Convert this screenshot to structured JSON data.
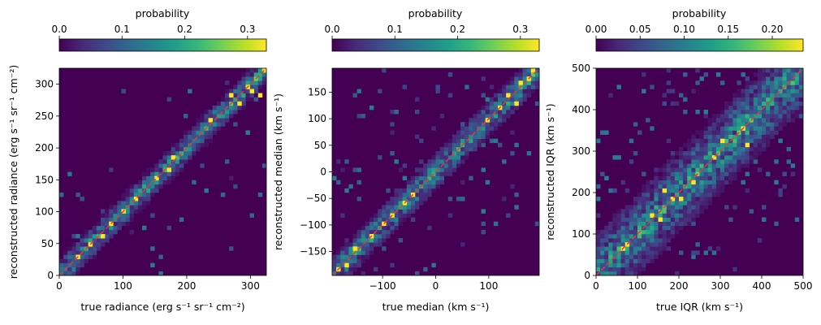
{
  "colors": {
    "viridis": [
      "#440154",
      "#482878",
      "#3e4989",
      "#31688e",
      "#26828e",
      "#1f9e89",
      "#35b779",
      "#6ece58",
      "#b5de2b",
      "#fde725"
    ],
    "diagonal": "#e8383d",
    "axes": "#000000"
  },
  "chart_data": [
    {
      "type": "heatmap",
      "colorbar": {
        "label": "probability",
        "range": [
          0,
          0.33
        ],
        "ticks": [
          0.0,
          0.1,
          0.2,
          0.3
        ],
        "tick_labels": [
          "0.0",
          "0.1",
          "0.2",
          "0.3"
        ]
      },
      "xlabel": "true radiance (erg s⁻¹ sr⁻¹ cm⁻²)",
      "ylabel": "reconstructed radiance (erg s⁻¹ sr⁻¹ cm⁻²)",
      "xlim": [
        0,
        325
      ],
      "ylim": [
        0,
        325
      ],
      "xticks": [
        0,
        100,
        200,
        300
      ],
      "xtick_labels": [
        "0",
        "100",
        "200",
        "300"
      ],
      "yticks": [
        0,
        50,
        100,
        150,
        200,
        250,
        300
      ],
      "ytick_labels": [
        "0",
        "50",
        "100",
        "150",
        "200",
        "250",
        "300"
      ],
      "bins": 50,
      "diagonal": true,
      "band_width": 0.085,
      "tail": 0.28,
      "hot_cells": [
        [
          30,
          30
        ],
        [
          50,
          48
        ],
        [
          65,
          62
        ],
        [
          80,
          82
        ],
        [
          100,
          98
        ],
        [
          120,
          118
        ],
        [
          150,
          150
        ],
        [
          170,
          165
        ],
        [
          180,
          185
        ],
        [
          240,
          245
        ],
        [
          270,
          282
        ],
        [
          280,
          270
        ],
        [
          295,
          295
        ],
        [
          305,
          290
        ],
        [
          320,
          320
        ],
        [
          315,
          280
        ]
      ]
    },
    {
      "type": "heatmap",
      "colorbar": {
        "label": "probability",
        "range": [
          0,
          0.33
        ],
        "ticks": [
          0.0,
          0.1,
          0.2,
          0.3
        ],
        "tick_labels": [
          "0.0",
          "0.1",
          "0.2",
          "0.3"
        ]
      },
      "xlabel": "true median (km s⁻¹)",
      "ylabel": "reconstructed median (km s⁻¹)",
      "xlim": [
        -195,
        195
      ],
      "ylim": [
        -195,
        195
      ],
      "xticks": [
        -100,
        0,
        100
      ],
      "xtick_labels": [
        "−100",
        "0",
        "100"
      ],
      "yticks": [
        -150,
        -100,
        -50,
        0,
        50,
        100,
        150
      ],
      "ytick_labels": [
        "−150",
        "−100",
        "−50",
        "0",
        "50",
        "100",
        "150"
      ],
      "bins": 50,
      "diagonal": true,
      "band_width": 0.1,
      "tail": 0.55,
      "hot_cells": [
        [
          -185,
          -185
        ],
        [
          -170,
          -172
        ],
        [
          -150,
          -148
        ],
        [
          -120,
          -118
        ],
        [
          -100,
          -100
        ],
        [
          -80,
          -80
        ],
        [
          -60,
          -62
        ],
        [
          -40,
          -45
        ],
        [
          100,
          100
        ],
        [
          120,
          118
        ],
        [
          140,
          145
        ],
        [
          160,
          165
        ],
        [
          175,
          178
        ],
        [
          185,
          188
        ],
        [
          150,
          130
        ]
      ]
    },
    {
      "type": "heatmap",
      "colorbar": {
        "label": "probability",
        "range": [
          0,
          0.235
        ],
        "ticks": [
          0.0,
          0.05,
          0.1,
          0.15,
          0.2
        ],
        "tick_labels": [
          "0.00",
          "0.05",
          "0.10",
          "0.15",
          "0.20"
        ]
      },
      "xlabel": "true IQR (km s⁻¹)",
      "ylabel": "reconstructed IQR (km s⁻¹)",
      "xlim": [
        0,
        500
      ],
      "ylim": [
        0,
        500
      ],
      "xticks": [
        0,
        100,
        200,
        300,
        400,
        500
      ],
      "xtick_labels": [
        "0",
        "100",
        "200",
        "300",
        "400",
        "500"
      ],
      "yticks": [
        0,
        100,
        200,
        300,
        400,
        500
      ],
      "ytick_labels": [
        "0",
        "100",
        "200",
        "300",
        "400",
        "500"
      ],
      "bins": 50,
      "diagonal": true,
      "band_width": 0.22,
      "tail": 0.85,
      "hot_cells": [
        [
          60,
          60
        ],
        [
          70,
          75
        ],
        [
          150,
          135
        ],
        [
          160,
          200
        ],
        [
          180,
          185
        ],
        [
          200,
          180
        ],
        [
          230,
          220
        ],
        [
          280,
          280
        ],
        [
          300,
          320
        ],
        [
          350,
          355
        ],
        [
          360,
          310
        ],
        [
          130,
          140
        ]
      ]
    }
  ]
}
